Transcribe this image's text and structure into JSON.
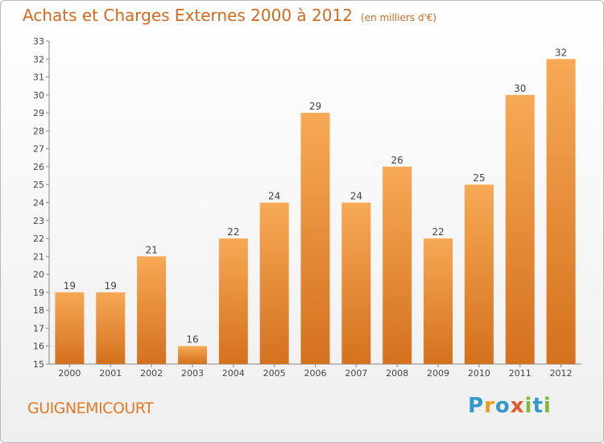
{
  "header": {
    "title": "Achats et Charges Externes 2000 à 2012",
    "unit": "(en milliers d'€)"
  },
  "footer": {
    "commune": "GUIGNEMICOURT",
    "logo": {
      "text": "Proxiti",
      "letters": [
        "P",
        "r",
        "o",
        "x",
        "i",
        "t",
        "i"
      ],
      "colors": [
        "#3399cc",
        "#e6a01e",
        "#3399cc",
        "#e25b2c",
        "#7fb83a",
        "#3399cc",
        "#7fb83a"
      ]
    }
  },
  "colors": {
    "bar_light": "#f7a955",
    "bar_dark": "#d4711e",
    "label": "#444444",
    "axis": "#888888",
    "grid": "#dddddd"
  },
  "chart_data": {
    "type": "bar",
    "categories": [
      "2000",
      "2001",
      "2002",
      "2003",
      "2004",
      "2005",
      "2006",
      "2007",
      "2008",
      "2009",
      "2010",
      "2011",
      "2012"
    ],
    "values": [
      19,
      19,
      21,
      16,
      22,
      24,
      29,
      24,
      26,
      22,
      25,
      30,
      32
    ],
    "ylim": [
      15,
      33
    ],
    "yticks": [
      15,
      16,
      17,
      18,
      19,
      20,
      21,
      22,
      23,
      24,
      25,
      26,
      27,
      28,
      29,
      30,
      31,
      32,
      33
    ],
    "grid": true,
    "data_labels": true
  }
}
